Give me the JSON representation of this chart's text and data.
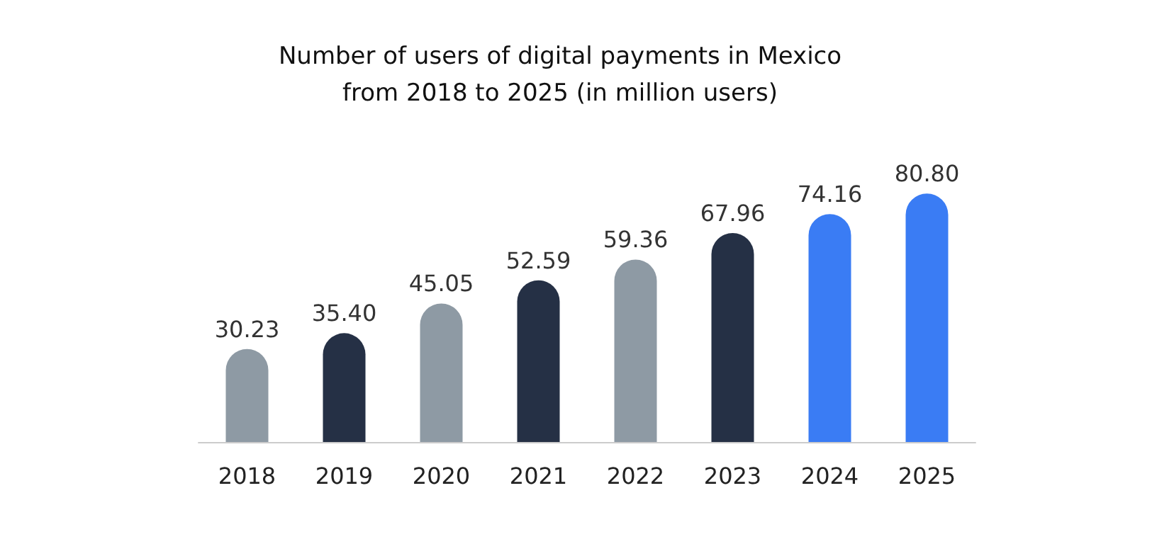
{
  "chart_data": {
    "type": "bar",
    "title": "Number of users of digital payments in Mexico\nfrom 2018 to 2025 (in million users)",
    "categories": [
      "2018",
      "2019",
      "2020",
      "2021",
      "2022",
      "2023",
      "2024",
      "2025"
    ],
    "values": [
      30.23,
      35.4,
      45.05,
      52.59,
      59.36,
      67.96,
      74.16,
      80.8
    ],
    "value_labels": [
      "30.23",
      "35.40",
      "45.05",
      "52.59",
      "59.36",
      "67.96",
      "74.16",
      "80.80"
    ],
    "colors": [
      "#8e9aa4",
      "#253045",
      "#8e9aa4",
      "#253045",
      "#8e9aa4",
      "#253045",
      "#3a7cf4",
      "#3a7cf4"
    ],
    "data_labels": false
  }
}
